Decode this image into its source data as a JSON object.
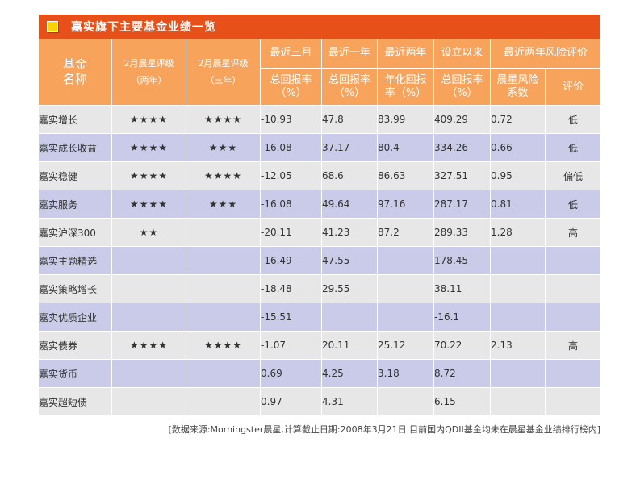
{
  "banner": {
    "title": "嘉实旗下主要基金业绩一览"
  },
  "header": {
    "name_line1": "基金",
    "name_line2": "名称",
    "rating2y_line1": "2月晨星评级",
    "rating2y_line2": "（两年）",
    "rating3y_line1": "2月晨星评级",
    "rating3y_line2": "（三年）",
    "group_3m": "最近三月",
    "group_1y": "最近一年",
    "group_2y": "最近两年",
    "group_since": "设立以来",
    "group_risk": "最近两年风险评价",
    "sub_3m_line1": "总回报率",
    "sub_3m_line2": "（%）",
    "sub_1y_line1": "总回报率",
    "sub_1y_line2": "（%）",
    "sub_2y_line1": "年化回报",
    "sub_2y_line2": "率（%）",
    "sub_since_line1": "总回报率",
    "sub_since_line2": "（%）",
    "sub_risk_line1": "晨星风险",
    "sub_risk_line2": "系数",
    "sub_eval": "评价"
  },
  "rows": [
    {
      "name": "嘉实增长",
      "r2": "★★★★",
      "r3": "★★★★",
      "m3": "-10.93",
      "y1": "47.8",
      "y2": "83.99",
      "since": "409.29",
      "risk": "0.72",
      "eval": "低"
    },
    {
      "name": "嘉实成长收益",
      "r2": "★★★★",
      "r3": "★★★",
      "m3": "-16.08",
      "y1": "37.17",
      "y2": "80.4",
      "since": "334.26",
      "risk": "0.66",
      "eval": "低"
    },
    {
      "name": "嘉实稳健",
      "r2": "★★★★",
      "r3": "★★★★",
      "m3": "-12.05",
      "y1": "68.6",
      "y2": "86.63",
      "since": "327.51",
      "risk": "0.95",
      "eval": "偏低"
    },
    {
      "name": "嘉实服务",
      "r2": "★★★★",
      "r3": "★★★",
      "m3": "-16.08",
      "y1": "49.64",
      "y2": "97.16",
      "since": "287.17",
      "risk": "0.81",
      "eval": "低"
    },
    {
      "name": "嘉实沪深300",
      "r2": "★★",
      "r3": "",
      "m3": "-20.11",
      "y1": "41.23",
      "y2": "87.2",
      "since": "289.33",
      "risk": "1.28",
      "eval": "高"
    },
    {
      "name": "嘉实主题精选",
      "r2": "",
      "r3": "",
      "m3": "-16.49",
      "y1": "47.55",
      "y2": "",
      "since": "178.45",
      "risk": "",
      "eval": ""
    },
    {
      "name": "嘉实策略增长",
      "r2": "",
      "r3": "",
      "m3": "-18.48",
      "y1": "29.55",
      "y2": "",
      "since": "38.11",
      "risk": "",
      "eval": ""
    },
    {
      "name": "嘉实优质企业",
      "r2": "",
      "r3": "",
      "m3": "-15.51",
      "y1": "",
      "y2": "",
      "since": "-16.1",
      "risk": "",
      "eval": ""
    },
    {
      "name": "嘉实债券",
      "r2": "★★★★",
      "r3": "★★★★",
      "m3": "-1.07",
      "y1": "20.11",
      "y2": "25.12",
      "since": "70.22",
      "risk": "2.13",
      "eval": "高"
    },
    {
      "name": "嘉实货币",
      "r2": "",
      "r3": "",
      "m3": "0.69",
      "y1": "4.25",
      "y2": "3.18",
      "since": "8.72",
      "risk": "",
      "eval": ""
    },
    {
      "name": "嘉实超短债",
      "r2": "",
      "r3": "",
      "m3": "0.97",
      "y1": "4.31",
      "y2": "",
      "since": "6.15",
      "risk": "",
      "eval": ""
    }
  ],
  "footnote": "[数据来源:Morningster晨星,计算截止日期:2008年3月21日.目前国内QDII基金均未在晨星基金业绩排行榜内]",
  "colors": {
    "banner": "#e8501a",
    "header": "#f7a35c",
    "row_gray": "#e7e7e7",
    "row_blue": "#c9cbe9",
    "icon": "#ffd200"
  },
  "icons": {
    "banner_icon": "yellow-square-icon"
  }
}
